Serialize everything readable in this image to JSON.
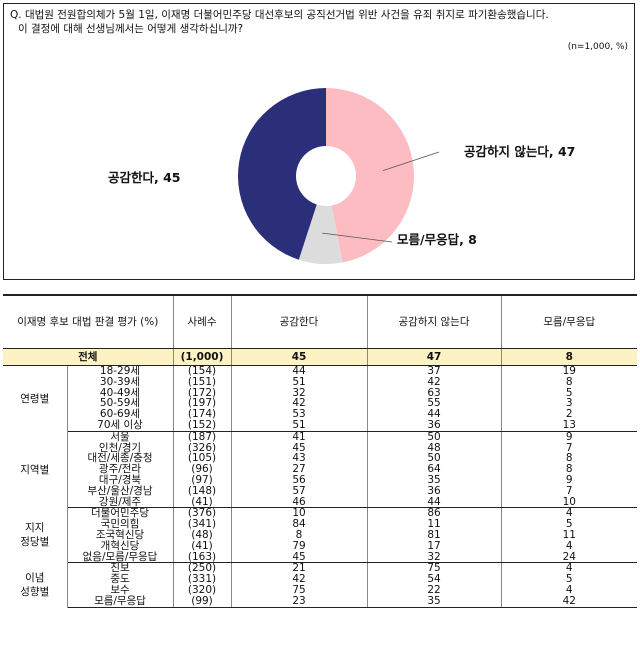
{
  "question": {
    "line1": "Q. 대법원 전원합의체가 5월 1일, 이재명 더불어민주당 대선후보의 공직선거법 위반 사건을 유죄 취지로 파기환송했습니다.",
    "line2": "이 결정에 대해 선생님께서는 어떻게 생각하십니까?"
  },
  "note": "(n=1,000, %)",
  "chart_data": {
    "type": "pie",
    "donut": true,
    "slices": [
      {
        "label": "공감하지 않는다",
        "value": 47,
        "color": "#fcbcc2",
        "text": "공감하지 않는다, 47"
      },
      {
        "label": "모름/무응답",
        "value": 8,
        "color": "#dcdcdc",
        "text": "모름/무응답, 8"
      },
      {
        "label": "공감한다",
        "value": 45,
        "color": "#2b2f7a",
        "text": "공감한다, 45"
      }
    ]
  },
  "table": {
    "headers": [
      "이재명 후보 대법 판결 평가 (%)",
      "사례수",
      "공감한다",
      "공감하지 않는다",
      "모름/무응답"
    ],
    "total": {
      "label": "전체",
      "n": "(1,000)",
      "v": [
        "45",
        "47",
        "8"
      ]
    },
    "groups": [
      {
        "name": "연령별",
        "rows": [
          {
            "label": "18-29세",
            "n": "(154)",
            "v": [
              "44",
              "37",
              "19"
            ]
          },
          {
            "label": "30-39세",
            "n": "(151)",
            "v": [
              "51",
              "42",
              "8"
            ]
          },
          {
            "label": "40-49세",
            "n": "(172)",
            "v": [
              "32",
              "63",
              "5"
            ]
          },
          {
            "label": "50-59세",
            "n": "(197)",
            "v": [
              "42",
              "55",
              "3"
            ]
          },
          {
            "label": "60-69세",
            "n": "(174)",
            "v": [
              "53",
              "44",
              "2"
            ]
          },
          {
            "label": "70세 이상",
            "n": "(152)",
            "v": [
              "51",
              "36",
              "13"
            ]
          }
        ]
      },
      {
        "name": "지역별",
        "rows": [
          {
            "label": "서울",
            "n": "(187)",
            "v": [
              "41",
              "50",
              "9"
            ]
          },
          {
            "label": "인천/경기",
            "n": "(326)",
            "v": [
              "45",
              "48",
              "7"
            ]
          },
          {
            "label": "대전/세종/충청",
            "n": "(105)",
            "v": [
              "43",
              "50",
              "8"
            ]
          },
          {
            "label": "광주/전라",
            "n": "(96)",
            "v": [
              "27",
              "64",
              "8"
            ]
          },
          {
            "label": "대구/경북",
            "n": "(97)",
            "v": [
              "56",
              "35",
              "9"
            ]
          },
          {
            "label": "부산/울산/경남",
            "n": "(148)",
            "v": [
              "57",
              "36",
              "7"
            ]
          },
          {
            "label": "강원/제주",
            "n": "(41)",
            "v": [
              "46",
              "44",
              "10"
            ]
          }
        ]
      },
      {
        "name": "지지 정당별",
        "rows": [
          {
            "label": "더불어민주당",
            "n": "(376)",
            "v": [
              "10",
              "86",
              "4"
            ]
          },
          {
            "label": "국민의힘",
            "n": "(341)",
            "v": [
              "84",
              "11",
              "5"
            ]
          },
          {
            "label": "조국혁신당",
            "n": "(48)",
            "v": [
              "8",
              "81",
              "11"
            ]
          },
          {
            "label": "개혁신당",
            "n": "(41)",
            "v": [
              "79",
              "17",
              "4"
            ]
          },
          {
            "label": "없음/모름/무응답",
            "n": "(163)",
            "v": [
              "45",
              "32",
              "24"
            ]
          }
        ]
      },
      {
        "name": "이념 성향별",
        "rows": [
          {
            "label": "진보",
            "n": "(250)",
            "v": [
              "21",
              "75",
              "4"
            ]
          },
          {
            "label": "중도",
            "n": "(331)",
            "v": [
              "42",
              "54",
              "5"
            ]
          },
          {
            "label": "보수",
            "n": "(320)",
            "v": [
              "75",
              "22",
              "4"
            ]
          },
          {
            "label": "모름/무응답",
            "n": "(99)",
            "v": [
              "23",
              "35",
              "42"
            ]
          }
        ]
      }
    ]
  }
}
